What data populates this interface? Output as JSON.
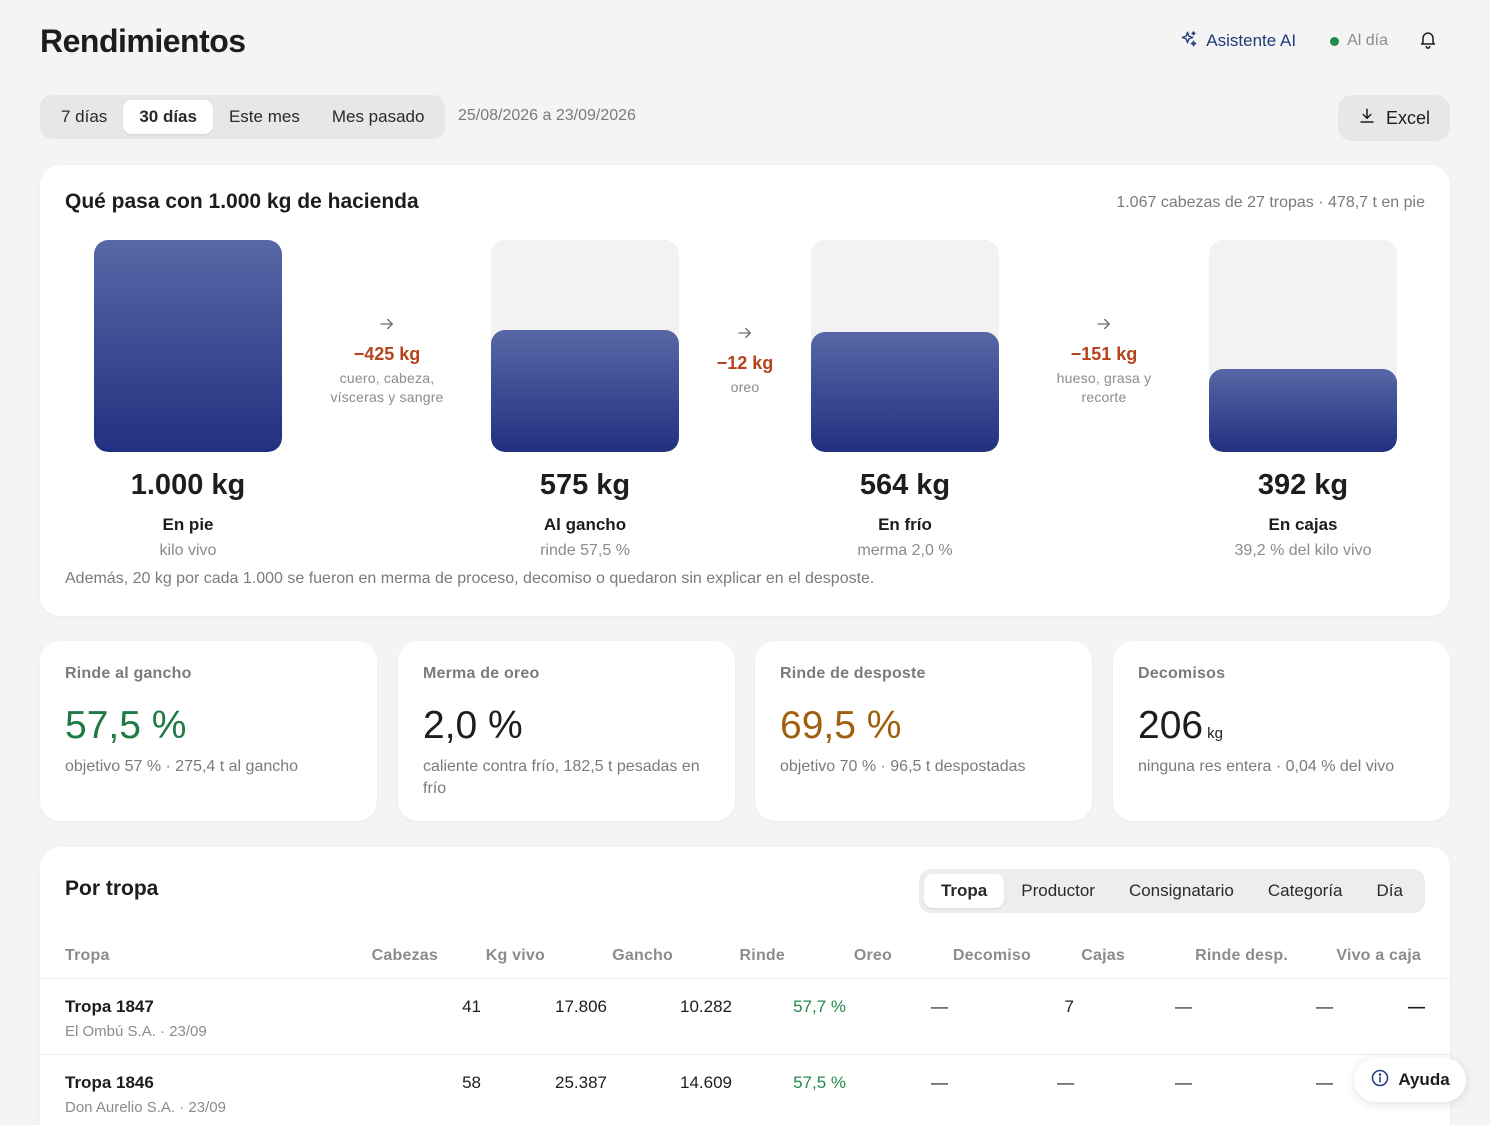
{
  "header": {
    "title": "Rendimientos",
    "ai_label": "Asistente AI",
    "status_label": "Al día",
    "ai_icon": "sparkle-icon",
    "bell_icon": "bell-icon",
    "status_color": "#1f8a4a",
    "accent_color": "#223a7a"
  },
  "toolbar": {
    "periods": [
      "7 días",
      "30 días",
      "Este mes",
      "Mes pasado"
    ],
    "active_period": "30 días",
    "date_range": "25/08/2026 a 23/09/2026",
    "excel_label": "Excel",
    "excel_icon": "download-icon"
  },
  "flow": {
    "title": "Qué pasa con 1.000 kg de hacienda",
    "summary": "1.067 cabezas de 27 tropas · 478,7 t en pie",
    "stages": [
      {
        "kg": "1.000 kg",
        "name": "En pie",
        "sub": "kilo vivo",
        "value": 1000
      },
      {
        "kg": "575 kg",
        "name": "Al gancho",
        "sub": "rinde 57,5 %",
        "value": 575
      },
      {
        "kg": "564 kg",
        "name": "En frío",
        "sub": "merma 2,0 %",
        "value": 564
      },
      {
        "kg": "392 kg",
        "name": "En cajas",
        "sub": "39,2 % del kilo vivo",
        "value": 392
      }
    ],
    "losses": [
      {
        "kg": "−425 kg",
        "desc": "cuero, cabeza, vísceras y sangre"
      },
      {
        "kg": "−12 kg",
        "desc": "oreo"
      },
      {
        "kg": "−151 kg",
        "desc": "hueso, grasa y recorte"
      }
    ],
    "note": "Además, 20 kg por cada 1.000 se fueron en merma de proceso, decomiso o quedaron sin explicar en el desposte.",
    "loss_color": "#b5431b",
    "bar_color": "#213180"
  },
  "kpis": [
    {
      "label": "Rinde al gancho",
      "value": "57,5 %",
      "unit": "",
      "sub": "objetivo 57 % · 275,4 t al gancho",
      "color": "#1f7a46"
    },
    {
      "label": "Merma de oreo",
      "value": "2,0 %",
      "unit": "",
      "sub": "caliente contra frío, 182,5 t pesadas en frío",
      "color": "#1d1d1f"
    },
    {
      "label": "Rinde de desposte",
      "value": "69,5 %",
      "unit": "",
      "sub": "objetivo 70 % · 96,5 t despostadas",
      "color": "#a0600f"
    },
    {
      "label": "Decomisos",
      "value": "206",
      "unit": "kg",
      "sub": "ninguna res entera · 0,04 % del vivo",
      "color": "#1d1d1f"
    }
  ],
  "table": {
    "title": "Por tropa",
    "group_tabs": [
      "Tropa",
      "Productor",
      "Consignatario",
      "Categoría",
      "Día"
    ],
    "active_group": "Tropa",
    "columns": [
      "Tropa",
      "Cabezas",
      "Kg vivo",
      "Gancho",
      "Rinde",
      "Oreo",
      "Decomiso",
      "Cajas",
      "Rinde desp.",
      "Vivo a caja"
    ],
    "rows": [
      {
        "name": "Tropa 1847",
        "sub": "El Ombú S.A. · 23/09",
        "cabezas": "41",
        "kg_vivo": "17.806",
        "gancho": "10.282",
        "rinde": "57,7 %",
        "oreo": "—",
        "decomiso": "7",
        "cajas": "—",
        "rinde_desp": "—",
        "vivo_caja": "—"
      },
      {
        "name": "Tropa 1846",
        "sub": "Don Aurelio S.A. · 23/09",
        "cabezas": "58",
        "kg_vivo": "25.387",
        "gancho": "14.609",
        "rinde": "57,5 %",
        "oreo": "—",
        "decomiso": "—",
        "cajas": "—",
        "rinde_desp": "—",
        "vivo_caja": "—"
      }
    ],
    "rinde_color": "#1f8a4a"
  },
  "help": {
    "label": "Ayuda",
    "icon": "info-icon"
  }
}
